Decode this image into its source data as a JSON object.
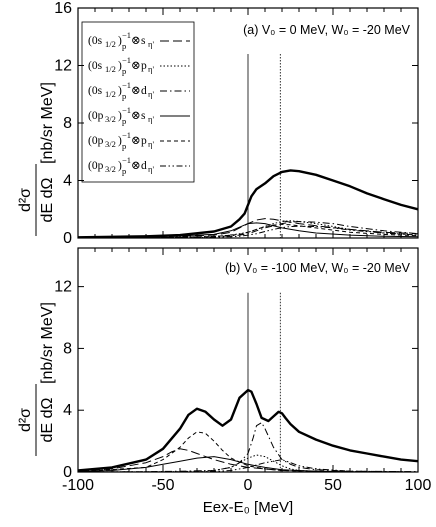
{
  "chart_data": [
    {
      "type": "line",
      "annotation": "(a) V₀ = 0 MeV, W₀ = -20 MeV",
      "ylabel_unit": "[nb/sr MeV]",
      "ylabel_main": "d²σ",
      "ylabel_den": "dE dΩ",
      "xlim": [
        -100,
        100
      ],
      "ylim": [
        0,
        16
      ],
      "yticks": [
        0,
        4,
        8,
        12,
        16
      ],
      "vlines": [
        0,
        19
      ],
      "legend": [
        {
          "orb": "(0s",
          "orbsub": "1/2",
          "eta": "s",
          "style": "long-dash"
        },
        {
          "orb": "(0s",
          "orbsub": "1/2",
          "eta": "p",
          "style": "dot"
        },
        {
          "orb": "(0s",
          "orbsub": "1/2",
          "eta": "d",
          "style": "dash-dot"
        },
        {
          "orb": "(0p",
          "orbsub": "3/2",
          "eta": "s",
          "style": "solid"
        },
        {
          "orb": "(0p",
          "orbsub": "3/2",
          "eta": "p",
          "style": "short-dash"
        },
        {
          "orb": "(0p",
          "orbsub": "3/2",
          "eta": "d",
          "style": "dash-dot-dot"
        }
      ],
      "series": [
        {
          "style": "total",
          "x": [
            -100,
            -80,
            -60,
            -40,
            -20,
            -10,
            -5,
            -2,
            0,
            2,
            5,
            10,
            15,
            20,
            25,
            30,
            40,
            50,
            60,
            70,
            80,
            90,
            100
          ],
          "y": [
            0.05,
            0.08,
            0.12,
            0.2,
            0.45,
            0.8,
            1.3,
            1.7,
            2.3,
            2.9,
            3.4,
            3.8,
            4.3,
            4.6,
            4.7,
            4.65,
            4.4,
            4.0,
            3.6,
            3.1,
            2.7,
            2.3,
            2.0
          ]
        },
        {
          "style": "long-dash",
          "x": [
            -100,
            -60,
            -20,
            -10,
            -5,
            0,
            5,
            10,
            15,
            20,
            30,
            40,
            60,
            80,
            100
          ],
          "y": [
            0.02,
            0.05,
            0.2,
            0.4,
            0.7,
            1.0,
            1.25,
            1.35,
            1.3,
            1.2,
            1.0,
            0.85,
            0.6,
            0.4,
            0.3
          ]
        },
        {
          "style": "dot",
          "x": [
            -100,
            -60,
            -20,
            -10,
            0,
            5,
            10,
            15,
            20,
            25,
            30,
            40,
            50,
            60,
            80,
            100
          ],
          "y": [
            0,
            0.02,
            0.1,
            0.2,
            0.4,
            0.6,
            0.8,
            1.0,
            1.15,
            1.2,
            1.15,
            1.0,
            0.8,
            0.6,
            0.35,
            0.2
          ]
        },
        {
          "style": "dash-dot",
          "x": [
            -100,
            -60,
            -20,
            -5,
            0,
            5,
            10,
            15,
            20,
            25,
            30,
            40,
            50,
            60,
            80,
            100
          ],
          "y": [
            0,
            0.02,
            0.08,
            0.2,
            0.3,
            0.5,
            0.7,
            0.85,
            1.0,
            1.1,
            1.15,
            1.1,
            1.0,
            0.8,
            0.5,
            0.3
          ]
        },
        {
          "style": "solid",
          "x": [
            -100,
            -60,
            -20,
            -10,
            -5,
            0,
            5,
            10,
            15,
            20,
            30,
            40,
            60,
            80,
            100
          ],
          "y": [
            0.02,
            0.05,
            0.25,
            0.5,
            0.75,
            1.0,
            1.05,
            1.0,
            0.85,
            0.7,
            0.5,
            0.35,
            0.2,
            0.12,
            0.08
          ]
        },
        {
          "style": "short-dash",
          "x": [
            -100,
            -60,
            -20,
            -5,
            0,
            5,
            10,
            15,
            20,
            25,
            30,
            40,
            50,
            60,
            80,
            100
          ],
          "y": [
            0,
            0.02,
            0.1,
            0.25,
            0.4,
            0.6,
            0.8,
            0.9,
            0.95,
            0.92,
            0.85,
            0.7,
            0.55,
            0.4,
            0.25,
            0.15
          ]
        },
        {
          "style": "dash-dot-dot",
          "x": [
            -100,
            -60,
            -20,
            -5,
            0,
            5,
            10,
            15,
            20,
            25,
            30,
            40,
            50,
            60,
            80,
            100
          ],
          "y": [
            0,
            0.01,
            0.05,
            0.12,
            0.2,
            0.3,
            0.45,
            0.6,
            0.72,
            0.8,
            0.82,
            0.8,
            0.7,
            0.55,
            0.35,
            0.2
          ]
        }
      ]
    },
    {
      "type": "line",
      "annotation": "(b) V₀ = -100 MeV, W₀ = -20 MeV",
      "ylabel_unit": "[nb/sr MeV]",
      "ylabel_main": "d²σ",
      "ylabel_den": "dE dΩ",
      "xlabel": "Eex-E₀ [MeV]",
      "xlim": [
        -100,
        100
      ],
      "ylim": [
        0,
        14.5
      ],
      "yticks": [
        0,
        4,
        8,
        12
      ],
      "xticks": [
        -100,
        -50,
        0,
        50,
        100
      ],
      "vlines": [
        0,
        19
      ],
      "series": [
        {
          "style": "total",
          "x": [
            -100,
            -80,
            -60,
            -50,
            -40,
            -35,
            -30,
            -25,
            -20,
            -15,
            -10,
            -5,
            0,
            2,
            5,
            8,
            12,
            15,
            18,
            20,
            22,
            25,
            30,
            40,
            50,
            60,
            70,
            80,
            90,
            100
          ],
          "y": [
            0.1,
            0.3,
            0.8,
            1.5,
            2.8,
            3.7,
            4.1,
            3.9,
            3.4,
            3.0,
            3.4,
            4.8,
            5.3,
            5.2,
            4.4,
            3.5,
            3.3,
            3.6,
            3.9,
            3.8,
            3.5,
            3.1,
            2.6,
            2.1,
            1.7,
            1.4,
            1.2,
            1.0,
            0.8,
            0.7
          ]
        },
        {
          "style": "long-dash",
          "x": [
            -100,
            -80,
            -60,
            -50,
            -45,
            -40,
            -35,
            -30,
            -20,
            -10,
            0,
            10,
            20,
            40,
            60,
            100
          ],
          "y": [
            0.05,
            0.2,
            0.6,
            1.0,
            1.3,
            1.5,
            1.4,
            1.2,
            0.8,
            0.5,
            0.3,
            0.2,
            0.1,
            0.05,
            0.02,
            0
          ]
        },
        {
          "style": "dot",
          "x": [
            -100,
            -40,
            -20,
            -10,
            -5,
            0,
            5,
            10,
            15,
            20,
            25,
            30,
            40,
            60,
            100
          ],
          "y": [
            0,
            0.02,
            0.1,
            0.3,
            0.6,
            0.9,
            1.1,
            1.0,
            0.7,
            0.4,
            0.2,
            0.1,
            0.05,
            0.02,
            0
          ]
        },
        {
          "style": "dash-dot",
          "x": [
            -100,
            -60,
            -40,
            -20,
            -10,
            -5,
            0,
            3,
            5,
            8,
            10,
            15,
            20,
            25,
            30,
            40,
            60,
            100
          ],
          "y": [
            0,
            0.02,
            0.05,
            0.1,
            0.3,
            0.6,
            1.2,
            2.2,
            3.0,
            3.2,
            2.8,
            1.6,
            0.8,
            0.5,
            0.3,
            0.15,
            0.05,
            0.02
          ]
        },
        {
          "style": "solid",
          "x": [
            -100,
            -80,
            -60,
            -50,
            -40,
            -30,
            -20,
            -10,
            0,
            10,
            20,
            40,
            60,
            100
          ],
          "y": [
            0.02,
            0.1,
            0.3,
            0.5,
            0.7,
            0.9,
            1.0,
            0.8,
            0.5,
            0.3,
            0.15,
            0.05,
            0.02,
            0
          ]
        },
        {
          "style": "short-dash",
          "x": [
            -100,
            -60,
            -50,
            -40,
            -35,
            -30,
            -25,
            -20,
            -15,
            -10,
            0,
            10,
            20,
            40,
            60,
            100
          ],
          "y": [
            0.02,
            0.3,
            0.8,
            1.6,
            2.2,
            2.6,
            2.5,
            2.0,
            1.4,
            0.9,
            0.4,
            0.2,
            0.1,
            0.05,
            0.02,
            0
          ]
        },
        {
          "style": "dash-dot-dot",
          "x": [
            -100,
            -40,
            -20,
            -10,
            0,
            5,
            10,
            15,
            20,
            25,
            30,
            40,
            60,
            100
          ],
          "y": [
            0,
            0.01,
            0.03,
            0.1,
            0.3,
            0.45,
            0.6,
            0.7,
            0.8,
            0.6,
            0.4,
            0.2,
            0.05,
            0.01
          ]
        }
      ]
    }
  ]
}
